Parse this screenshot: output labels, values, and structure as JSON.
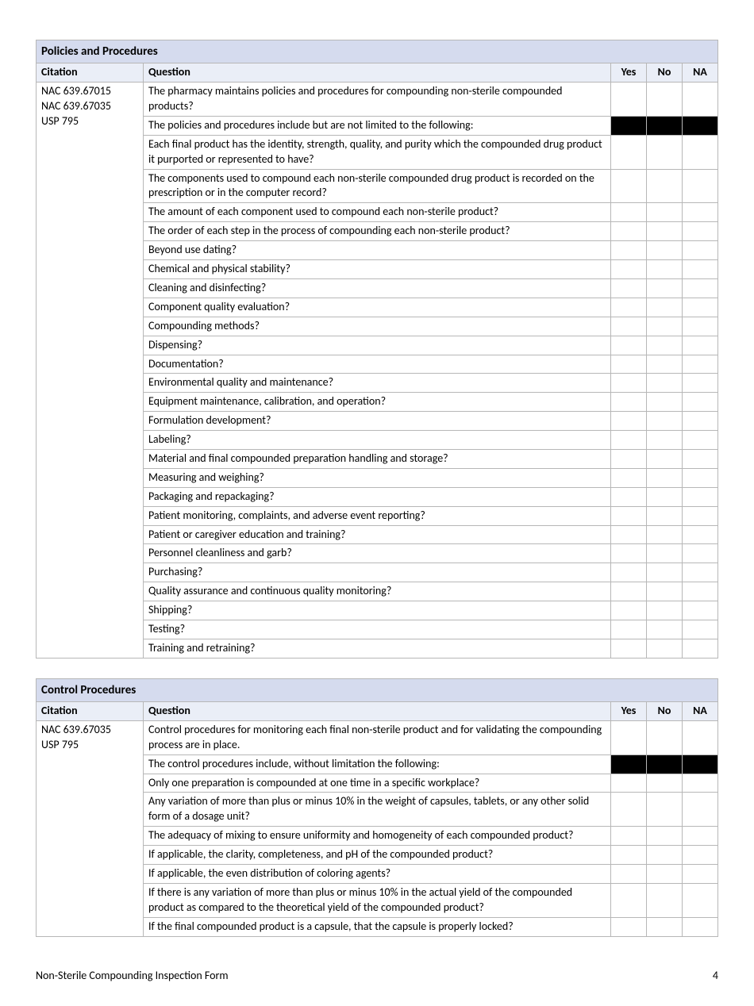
{
  "section1": {
    "title": "Policies and Procedures",
    "headers": {
      "citation": "Citation",
      "question": "Question",
      "yes": "Yes",
      "no": "No",
      "na": "NA"
    },
    "citation_lines": [
      "NAC 639.67015",
      "NAC 639.67035",
      "USP 795"
    ],
    "rows": [
      {
        "q": "The pharmacy maintains policies and procedures for compounding non-sterile compounded products?",
        "black": false
      },
      {
        "q": "The policies and procedures include but are not limited to the following:",
        "black": true
      },
      {
        "q": "Each final product has the identity, strength, quality, and purity which the compounded drug product it purported or represented to have?",
        "black": false
      },
      {
        "q": "The components used to compound each non-sterile compounded drug product is recorded on the prescription or in the computer record?",
        "black": false
      },
      {
        "q": "The amount of each component used to compound each non-sterile product?",
        "black": false
      },
      {
        "q": "The order of each step in the process of compounding each non-sterile product?",
        "black": false
      },
      {
        "q": "Beyond use dating?",
        "black": false
      },
      {
        "q": "Chemical and physical stability?",
        "black": false
      },
      {
        "q": "Cleaning and disinfecting?",
        "black": false
      },
      {
        "q": "Component quality evaluation?",
        "black": false
      },
      {
        "q": "Compounding methods?",
        "black": false
      },
      {
        "q": "Dispensing?",
        "black": false
      },
      {
        "q": "Documentation?",
        "black": false
      },
      {
        "q": "Environmental quality and maintenance?",
        "black": false
      },
      {
        "q": "Equipment maintenance, calibration, and operation?",
        "black": false
      },
      {
        "q": "Formulation development?",
        "black": false
      },
      {
        "q": "Labeling?",
        "black": false
      },
      {
        "q": "Material and final compounded preparation handling and storage?",
        "black": false
      },
      {
        "q": "Measuring and weighing?",
        "black": false
      },
      {
        "q": "Packaging and repackaging?",
        "black": false
      },
      {
        "q": "Patient monitoring, complaints, and adverse event reporting?",
        "black": false
      },
      {
        "q": "Patient or caregiver education and training?",
        "black": false
      },
      {
        "q": "Personnel cleanliness and garb?",
        "black": false
      },
      {
        "q": "Purchasing?",
        "black": false
      },
      {
        "q": "Quality assurance and continuous quality monitoring?",
        "black": false
      },
      {
        "q": "Shipping?",
        "black": false
      },
      {
        "q": "Testing?",
        "black": false
      },
      {
        "q": "Training and retraining?",
        "black": false
      }
    ]
  },
  "section2": {
    "title": "Control Procedures",
    "headers": {
      "citation": "Citation",
      "question": "Question",
      "yes": "Yes",
      "no": "No",
      "na": "NA"
    },
    "citation_lines": [
      "NAC 639.67035",
      "USP 795"
    ],
    "rows": [
      {
        "q": "Control procedures for monitoring each final non-sterile product and for validating the compounding process are in place.",
        "black": false
      },
      {
        "q": "The control procedures include, without limitation the following:",
        "black": true
      },
      {
        "q": "Only one preparation is compounded at one time in a specific workplace?",
        "black": false
      },
      {
        "q": "Any variation of more than plus or minus 10% in the weight of capsules, tablets, or any other solid form of a dosage unit?",
        "black": false
      },
      {
        "q": "The adequacy of mixing to ensure uniformity and homogeneity of each compounded product?",
        "black": false
      },
      {
        "q": "If applicable, the clarity, completeness, and pH of the compounded product?",
        "black": false
      },
      {
        "q": "If applicable, the even distribution of coloring agents?",
        "black": false
      },
      {
        "q": "If there is any variation of more than plus or minus 10% in the actual yield of the compounded product as compared to the theoretical yield of the compounded product?",
        "black": false
      },
      {
        "q": "If the final compounded product is a capsule, that the capsule is properly locked?",
        "black": false
      }
    ]
  },
  "footer": {
    "title": "Non-Sterile Compounding Inspection Form",
    "page": "4"
  },
  "colors": {
    "title_bg": "#d5dbee",
    "header_bg": "#eaeef7",
    "border": "#b7b7b7",
    "black": "#000000"
  }
}
